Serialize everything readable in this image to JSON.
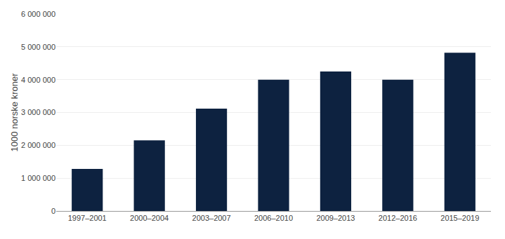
{
  "chart_data": {
    "type": "bar",
    "categories": [
      "1997–2001",
      "2000–2004",
      "2003–2007",
      "2006–2010",
      "2009–2013",
      "2012–2016",
      "2015–2019"
    ],
    "values": [
      1280000,
      2150000,
      3120000,
      4000000,
      4250000,
      4000000,
      4820000
    ],
    "color": "#0d2240",
    "ylabel": "1000 norske kroner",
    "ylim": [
      0,
      6000000
    ],
    "yticks": [
      0,
      {
        "value": 1000000,
        "label": "1 000 000"
      },
      {
        "value": 2000000,
        "label": "2 000 000"
      },
      {
        "value": 3000000,
        "label": "3 000 000"
      },
      {
        "value": 4000000,
        "label": "4 000 000"
      },
      {
        "value": 5000000,
        "label": "5 000 000"
      },
      {
        "value": 6000000,
        "label": "6 000 000"
      }
    ],
    "grid": true
  }
}
